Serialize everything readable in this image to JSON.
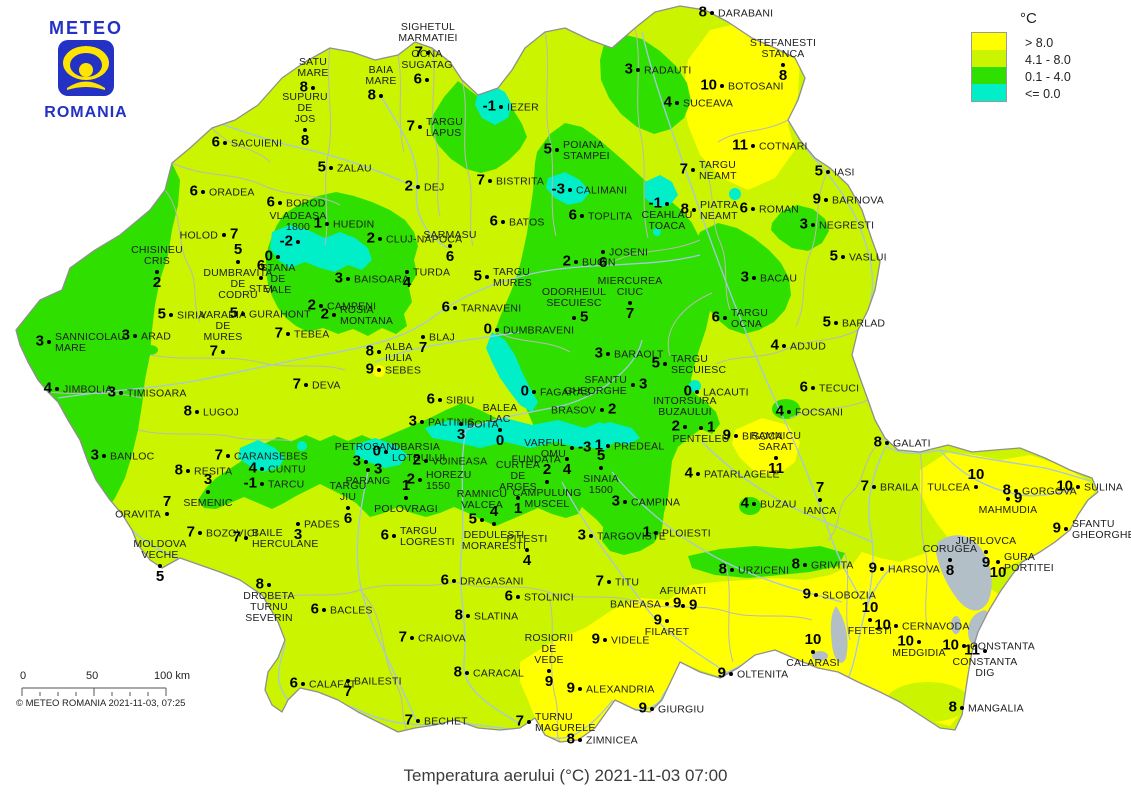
{
  "logo": {
    "line1": "METEO",
    "line2": "ROMANIA"
  },
  "legend": {
    "title": "°C",
    "items": [
      {
        "label": "> 8.0",
        "color": "#ffff00"
      },
      {
        "label": "4.1 - 8.0",
        "color": "#cbf400"
      },
      {
        "label": "0.1 - 4.0",
        "color": "#2fdf00"
      },
      {
        "label": "<= 0.0",
        "color": "#00eec8"
      }
    ]
  },
  "scalebar": {
    "tick0": "0",
    "tick50": "50",
    "tick100": "100 km",
    "credit": "© METEO ROMANIA 2021-11-03, 07:25"
  },
  "caption": "Temperatura aerului (°C) 2021-11-03 07:00",
  "map": {
    "stations": [
      [
        "SATU\nMARE",
        "8",
        313,
        88,
        "a",
        "l"
      ],
      [
        "BAIA\nMARE",
        "8",
        381,
        96,
        "a",
        "l"
      ],
      [
        "OCNA\nSUGATAG",
        "6",
        427,
        80,
        "a",
        "l"
      ],
      [
        "SIGHETUL\nMARMATIEI",
        "7",
        428,
        53,
        "a",
        "l"
      ],
      [
        "SUPURU\nDE\nJOS",
        "8",
        305,
        130,
        "a",
        "b"
      ],
      [
        "SACUIENI",
        "6",
        225,
        143,
        "r",
        "l"
      ],
      [
        "ZALAU",
        "5",
        331,
        168,
        "r",
        "l"
      ],
      [
        "TARGU\nLAPUS",
        "7",
        420,
        127,
        "r",
        "l"
      ],
      [
        "IEZER",
        "-1",
        501,
        107,
        "r",
        "l"
      ],
      [
        "ORADEA",
        "6",
        203,
        192,
        "r",
        "l"
      ],
      [
        "BOROD",
        "6",
        280,
        203,
        "r",
        "l"
      ],
      [
        "HOLOD",
        "7",
        224,
        235,
        "l",
        "r"
      ],
      [
        "DUMBRAVITA\nDE\nCODRU",
        "5",
        238,
        262,
        "b",
        "a"
      ],
      [
        "CHISINEU\nCRIS",
        "2",
        157,
        272,
        "a",
        "b"
      ],
      [
        "STANA\nDE\nVALE",
        "0",
        278,
        257,
        "b",
        "l"
      ],
      [
        "STEI",
        "6",
        261,
        278,
        "b",
        "a"
      ],
      [
        "VLADEASA\n1800",
        "-2",
        298,
        242,
        "a",
        "l"
      ],
      [
        "HUEDIN",
        "1",
        327,
        224,
        "r",
        "l"
      ],
      [
        "CLUJ-NAPOCA",
        "2",
        380,
        239,
        "r",
        "l"
      ],
      [
        "TURDA",
        "4",
        407,
        272,
        "r",
        "b"
      ],
      [
        "BAISOARA",
        "3",
        348,
        279,
        "r",
        "l"
      ],
      [
        "CAMPENI",
        "2",
        321,
        306,
        "r",
        "l"
      ],
      [
        "ROSIA\nMONTANA",
        "2",
        334,
        315,
        "r",
        "l"
      ],
      [
        "SARMASU",
        "6",
        450,
        246,
        "a",
        "b"
      ],
      [
        "BATOS",
        "6",
        503,
        222,
        "r",
        "l"
      ],
      [
        "DEJ",
        "2",
        418,
        187,
        "r",
        "l"
      ],
      [
        "BISTRITA",
        "7",
        490,
        181,
        "r",
        "l"
      ],
      [
        "POIANA\nSTAMPEI",
        "5",
        557,
        150,
        "r",
        "l"
      ],
      [
        "CALIMANI",
        "-3",
        570,
        190,
        "r",
        "l"
      ],
      [
        "RADAUTI",
        "3",
        638,
        70,
        "r",
        "l"
      ],
      [
        "SUCEAVA",
        "4",
        677,
        103,
        "r",
        "l"
      ],
      [
        "DARABANI",
        "8",
        712,
        13,
        "r",
        "l"
      ],
      [
        "STEFANESTI\nSTANCA",
        "8",
        783,
        65,
        "a",
        "b"
      ],
      [
        "BOTOSANI",
        "10",
        722,
        86,
        "r",
        "l"
      ],
      [
        "COTNARI",
        "11",
        753,
        146,
        "r",
        "l"
      ],
      [
        "TARGU\nNEAMT",
        "7",
        693,
        170,
        "r",
        "l"
      ],
      [
        "IASI",
        "5",
        828,
        172,
        "r",
        "l"
      ],
      [
        "BARNOVA",
        "9",
        826,
        200,
        "r",
        "l"
      ],
      [
        "PIATRA\nNEAMT",
        "8",
        694,
        210,
        "r",
        "l"
      ],
      [
        "ROMAN",
        "6",
        753,
        209,
        "r",
        "l"
      ],
      [
        "NEGRESTI",
        "3",
        813,
        225,
        "r",
        "l"
      ],
      [
        "TOPLITA",
        "6",
        582,
        216,
        "r",
        "l"
      ],
      [
        "CEAHLAU\nTOACA",
        "-1",
        667,
        204,
        "b",
        "l"
      ],
      [
        "JOSENI",
        "6",
        603,
        252,
        "r",
        "b"
      ],
      [
        "BUCIN",
        "2",
        576,
        262,
        "r",
        "l"
      ],
      [
        "TARGU\nMURES",
        "5",
        487,
        277,
        "r",
        "l"
      ],
      [
        "TARNAVENI",
        "6",
        455,
        308,
        "r",
        "l"
      ],
      [
        "DUMBRAVENI",
        "0",
        497,
        330,
        "r",
        "l"
      ],
      [
        "BLAJ",
        "7",
        423,
        337,
        "r",
        "b"
      ],
      [
        "ALBA\nIULIA",
        "8",
        379,
        352,
        "r",
        "l"
      ],
      [
        "SEBES",
        "9",
        379,
        370,
        "r",
        "l"
      ],
      [
        "DEVA",
        "7",
        306,
        385,
        "r",
        "l"
      ],
      [
        "SIBIU",
        "6",
        440,
        400,
        "r",
        "l"
      ],
      [
        "PALTINIS",
        "3",
        422,
        422,
        "r",
        "l"
      ],
      [
        "BOITA",
        "3",
        461,
        424,
        "r",
        "b"
      ],
      [
        "BALEA\nLAC",
        "0",
        500,
        430,
        "a",
        "b"
      ],
      [
        "FAGARAS",
        "0",
        534,
        392,
        "r",
        "l"
      ],
      [
        "BRASOV",
        "2",
        602,
        410,
        "l",
        "r"
      ],
      [
        "VARFUL\nOMU",
        "-3",
        572,
        448,
        "l",
        "r"
      ],
      [
        "PREDEAL",
        "1",
        608,
        446,
        "r",
        "l"
      ],
      [
        "FUNDATA",
        "4",
        567,
        459,
        "l",
        "b"
      ],
      [
        "SINAIA\n1500",
        "5",
        601,
        468,
        "b",
        "a"
      ],
      [
        "CAMPINA",
        "3",
        625,
        502,
        "r",
        "l"
      ],
      [
        "CURTEA\nDE\nARGES",
        "1",
        518,
        498,
        "a",
        "b"
      ],
      [
        "CAMPULUNG\nMUSCEL",
        "2",
        547,
        482,
        "b",
        "a"
      ],
      [
        "PETROSANI",
        "3",
        366,
        462,
        "a",
        "l"
      ],
      [
        "OBARSIA\nLOTRULUI",
        "0",
        386,
        452,
        "r",
        "l"
      ],
      [
        "PARANG",
        "3",
        368,
        470,
        "b",
        "r"
      ],
      [
        "VOINEASA",
        "2",
        426,
        461,
        "r",
        "l"
      ],
      [
        "HOREZU\n1550",
        "2",
        420,
        480,
        "r",
        "l"
      ],
      [
        "POLOVRAGI",
        "1",
        406,
        498,
        "b",
        "a"
      ],
      [
        "TARGU\nJIU",
        "6",
        348,
        508,
        "a",
        "b"
      ],
      [
        "TARGU\nLOGRESTI",
        "6",
        394,
        536,
        "r",
        "l"
      ],
      [
        "RAMNICU\nVALCEA",
        "5",
        482,
        520,
        "a",
        "l"
      ],
      [
        "DEDULESTI\nMORARESTI",
        "4",
        494,
        524,
        "b",
        "a"
      ],
      [
        "PITESTI",
        "4",
        527,
        550,
        "a",
        "b"
      ],
      [
        "TARGOVISTE",
        "3",
        591,
        536,
        "r",
        "l"
      ],
      [
        "PLOIESTI",
        "1",
        656,
        533,
        "r",
        "l"
      ],
      [
        "TITU",
        "7",
        609,
        582,
        "r",
        "l"
      ],
      [
        "STOLNICI",
        "6",
        518,
        597,
        "r",
        "l"
      ],
      [
        "DRAGASANI",
        "6",
        454,
        581,
        "r",
        "l"
      ],
      [
        "SLATINA",
        "8",
        468,
        616,
        "r",
        "l"
      ],
      [
        "CRAIOVA",
        "7",
        412,
        638,
        "r",
        "l"
      ],
      [
        "CARACAL",
        "8",
        467,
        673,
        "r",
        "l"
      ],
      [
        "BACLES",
        "6",
        324,
        610,
        "r",
        "l"
      ],
      [
        "CALAFAT",
        "6",
        303,
        684,
        "r",
        "l"
      ],
      [
        "BAILESTI",
        "7",
        348,
        681,
        "r",
        "b"
      ],
      [
        "BECHET",
        "7",
        418,
        721,
        "r",
        "l"
      ],
      [
        "ROSIORII\nDE\nVEDE",
        "9",
        549,
        671,
        "a",
        "b"
      ],
      [
        "TURNU\nMAGURELE",
        "7",
        529,
        722,
        "r",
        "l"
      ],
      [
        "ZIMNICEA",
        "8",
        580,
        740,
        "r",
        "l"
      ],
      [
        "ALEXANDRIA",
        "9",
        580,
        689,
        "r",
        "l"
      ],
      [
        "VIDELE",
        "9",
        605,
        640,
        "r",
        "l"
      ],
      [
        "BANEASA",
        "9",
        667,
        604,
        "l",
        "r"
      ],
      [
        "AFUMATI",
        "9",
        683,
        606,
        "a",
        "r"
      ],
      [
        "FILARET",
        "9",
        667,
        621,
        "b",
        "l"
      ],
      [
        "URZICENI",
        "8",
        732,
        570,
        "r",
        "l"
      ],
      [
        "GRIVITA",
        "8",
        805,
        565,
        "r",
        "l"
      ],
      [
        "SLOBOZIA",
        "9",
        816,
        595,
        "r",
        "l"
      ],
      [
        "FETESTI",
        "10",
        870,
        620,
        "b",
        "a"
      ],
      [
        "CERNAVODA",
        "10",
        896,
        626,
        "r",
        "l"
      ],
      [
        "MEDGIDIA",
        "10",
        919,
        642,
        "b",
        "l"
      ],
      [
        "CONSTANTA",
        "10",
        964,
        646,
        "r",
        "l"
      ],
      [
        "CONSTANTA\nDIG",
        "11",
        985,
        651,
        "b",
        "l"
      ],
      [
        "MANGALIA",
        "8",
        962,
        708,
        "r",
        "l"
      ],
      [
        "CALARASI",
        "10",
        813,
        652,
        "b",
        "a"
      ],
      [
        "OLTENITA",
        "9",
        731,
        674,
        "r",
        "l"
      ],
      [
        "GIURGIU",
        "9",
        652,
        709,
        "r",
        "l"
      ],
      [
        "HARSOVA",
        "9",
        882,
        569,
        "r",
        "l"
      ],
      [
        "CORUGEA",
        "8",
        950,
        560,
        "a",
        "b"
      ],
      [
        "JURILOVCA",
        "9",
        986,
        552,
        "a",
        "b"
      ],
      [
        "GURA\nPORTITEI",
        "10",
        998,
        562,
        "r",
        "b"
      ],
      [
        "TULCEA",
        "10",
        976,
        487,
        "l",
        "a"
      ],
      [
        "GORGOVA",
        "8",
        1016,
        491,
        "r",
        "l"
      ],
      [
        "MAHMUDIA",
        "9",
        1008,
        499,
        "b",
        "r"
      ],
      [
        "SULINA",
        "10",
        1078,
        487,
        "r",
        "l"
      ],
      [
        "SFANTU\nGHEORGHE",
        "9",
        1066,
        529,
        "r",
        "l"
      ],
      [
        "GALATI",
        "8",
        887,
        443,
        "r",
        "l"
      ],
      [
        "BRAILA",
        "7",
        874,
        487,
        "r",
        "l"
      ],
      [
        "IANCA",
        "7",
        820,
        500,
        "b",
        "a"
      ],
      [
        "BUZAU",
        "4",
        754,
        504,
        "r",
        "l"
      ],
      [
        "PATARLAGELE",
        "4",
        698,
        474,
        "r",
        "l"
      ],
      [
        "BISOCA",
        "9",
        736,
        436,
        "r",
        "l"
      ],
      [
        "RAMNICU\nSARAT",
        "11",
        776,
        458,
        "a",
        "b"
      ],
      [
        "FOCSANI",
        "4",
        789,
        412,
        "r",
        "l"
      ],
      [
        "TECUCI",
        "6",
        813,
        388,
        "r",
        "l"
      ],
      [
        "ADJUD",
        "4",
        784,
        346,
        "r",
        "l"
      ],
      [
        "BARLAD",
        "5",
        836,
        323,
        "r",
        "l"
      ],
      [
        "VASLUI",
        "5",
        843,
        257,
        "r",
        "l"
      ],
      [
        "BACAU",
        "3",
        754,
        278,
        "r",
        "l"
      ],
      [
        "TARGU\nOCNA",
        "6",
        725,
        318,
        "r",
        "l"
      ],
      [
        "MIERCUREA\nCIUC",
        "7",
        630,
        303,
        "a",
        "b"
      ],
      [
        "ODORHEIUL\nSECUIESC",
        "5",
        574,
        318,
        "a",
        "r"
      ],
      [
        "BARAOLT",
        "3",
        608,
        354,
        "r",
        "l"
      ],
      [
        "TARGU\nSECUIESC",
        "5",
        665,
        364,
        "r",
        "l"
      ],
      [
        "SFANTU\nGHEORGHE",
        "3",
        633,
        385,
        "l",
        "r"
      ],
      [
        "LACAUTI",
        "0",
        697,
        392,
        "r",
        "l"
      ],
      [
        "INTORSURA\nBUZAULUI",
        "2",
        685,
        427,
        "a",
        "l"
      ],
      [
        "PENTELEU",
        "1",
        701,
        428,
        "b",
        "r"
      ],
      [
        "GURAHONT",
        "5",
        243,
        314,
        "r",
        "l"
      ],
      [
        "SIRIA",
        "5",
        171,
        315,
        "r",
        "l"
      ],
      [
        "ARAD",
        "3",
        135,
        336,
        "r",
        "l"
      ],
      [
        "SANNICOLAU\nMARE",
        "3",
        49,
        342,
        "r",
        "l"
      ],
      [
        "JIMBOLIA",
        "4",
        57,
        389,
        "r",
        "l"
      ],
      [
        "TIMISOARA",
        "3",
        121,
        393,
        "r",
        "l"
      ],
      [
        "LUGOJ",
        "8",
        197,
        412,
        "r",
        "l"
      ],
      [
        "BANLOC",
        "3",
        104,
        456,
        "r",
        "l"
      ],
      [
        "VARADIA\nDE\nMURES",
        "7",
        223,
        352,
        "a",
        "l"
      ],
      [
        "TEBEA",
        "7",
        288,
        334,
        "r",
        "l"
      ],
      [
        "CARANSEBES",
        "7",
        228,
        456,
        "r",
        "l"
      ],
      [
        "RESITA",
        "8",
        188,
        471,
        "r",
        "l"
      ],
      [
        "SEMENIC",
        "3",
        208,
        492,
        "b",
        "a"
      ],
      [
        "ORAVITA",
        "7",
        167,
        514,
        "l",
        "a"
      ],
      [
        "BOZOVICI",
        "7",
        200,
        533,
        "r",
        "l"
      ],
      [
        "CUNTU",
        "4",
        262,
        469,
        "r",
        "l"
      ],
      [
        "TARCU",
        "-1",
        262,
        484,
        "r",
        "l"
      ],
      [
        "BAILE\nHERCULANE",
        "7",
        246,
        538,
        "r",
        "l"
      ],
      [
        "PADES",
        "3",
        298,
        524,
        "r",
        "b"
      ],
      [
        "MOLDOVA\nVECHE",
        "5",
        160,
        566,
        "a",
        "b"
      ],
      [
        "DROBETA\nTURNU\nSEVERIN",
        "8",
        269,
        585,
        "b",
        "l"
      ]
    ]
  }
}
